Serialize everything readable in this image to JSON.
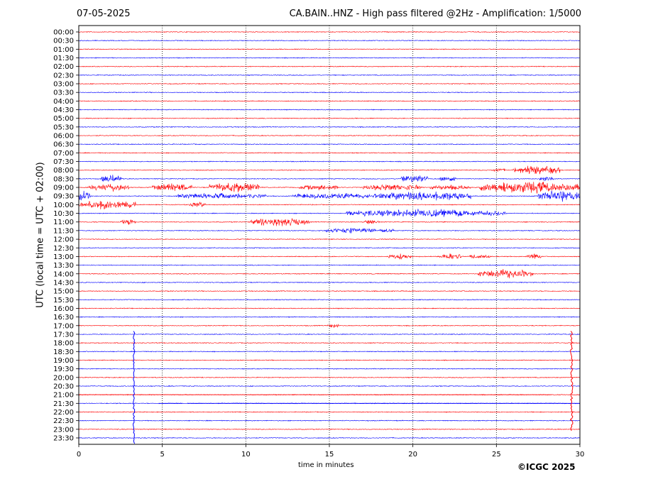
{
  "chart_data": {
    "type": "line",
    "title": "CA.BAIN..HNZ - High pass filtered @2Hz - Amplification: 1/5000",
    "date": "07-05-2025",
    "xlabel": "time in minutes",
    "ylabel": "UTC (local time = UTC + 02:00)",
    "copyright": "©ICGC 2025",
    "xlim": [
      0,
      30
    ],
    "xticks": [
      0,
      5,
      10,
      15,
      20,
      25,
      30
    ],
    "row_labels": [
      "00:00",
      "00:30",
      "01:00",
      "01:30",
      "02:00",
      "02:30",
      "03:00",
      "03:30",
      "04:00",
      "04:30",
      "05:00",
      "05:30",
      "06:00",
      "06:30",
      "07:00",
      "07:30",
      "08:00",
      "08:30",
      "09:00",
      "09:30",
      "10:00",
      "10:30",
      "11:00",
      "11:30",
      "12:00",
      "12:30",
      "13:00",
      "13:30",
      "14:00",
      "14:30",
      "15:00",
      "15:30",
      "16:00",
      "16:30",
      "17:00",
      "17:30",
      "18:00",
      "18:30",
      "19:00",
      "19:30",
      "20:00",
      "20:30",
      "21:00",
      "21:30",
      "22:00",
      "22:30",
      "23:00",
      "23:30"
    ],
    "trace_colors": [
      "#ff0000",
      "#0000ff"
    ],
    "grid_vertical_dotted": true,
    "activity_bursts": [
      {
        "row": "08:00",
        "start": 24.8,
        "end": 25.5,
        "amp": 0.3
      },
      {
        "row": "08:00",
        "start": 26.0,
        "end": 28.8,
        "amp": 0.7
      },
      {
        "row": "08:30",
        "start": 1.3,
        "end": 2.6,
        "amp": 0.6
      },
      {
        "row": "08:30",
        "start": 19.3,
        "end": 20.9,
        "amp": 0.7
      },
      {
        "row": "08:30",
        "start": 21.6,
        "end": 22.6,
        "amp": 0.4
      },
      {
        "row": "08:30",
        "start": 27.6,
        "end": 28.4,
        "amp": 0.4
      },
      {
        "row": "09:00",
        "start": 0.6,
        "end": 3.0,
        "amp": 0.6
      },
      {
        "row": "09:00",
        "start": 4.4,
        "end": 6.8,
        "amp": 0.6
      },
      {
        "row": "09:00",
        "start": 7.8,
        "end": 10.8,
        "amp": 0.8
      },
      {
        "row": "09:00",
        "start": 13.2,
        "end": 15.5,
        "amp": 0.4
      },
      {
        "row": "09:00",
        "start": 17.0,
        "end": 20.5,
        "amp": 0.5
      },
      {
        "row": "09:00",
        "start": 21.0,
        "end": 23.5,
        "amp": 0.4
      },
      {
        "row": "09:00",
        "start": 24.0,
        "end": 30.0,
        "amp": 0.9
      },
      {
        "row": "09:30",
        "start": 0.0,
        "end": 0.7,
        "amp": 0.8
      },
      {
        "row": "09:30",
        "start": 5.9,
        "end": 11.2,
        "amp": 0.4
      },
      {
        "row": "09:30",
        "start": 12.8,
        "end": 17.4,
        "amp": 0.5
      },
      {
        "row": "09:30",
        "start": 17.6,
        "end": 23.5,
        "amp": 0.7
      },
      {
        "row": "09:30",
        "start": 27.5,
        "end": 30.0,
        "amp": 0.9
      },
      {
        "row": "10:00",
        "start": 0.0,
        "end": 3.4,
        "amp": 0.7
      },
      {
        "row": "10:00",
        "start": 6.6,
        "end": 7.6,
        "amp": 0.4
      },
      {
        "row": "10:30",
        "start": 16.0,
        "end": 25.2,
        "amp": 0.6
      },
      {
        "row": "10:30",
        "start": 25.2,
        "end": 25.6,
        "amp": 0.3
      },
      {
        "row": "11:00",
        "start": 2.5,
        "end": 3.4,
        "amp": 0.5
      },
      {
        "row": "11:00",
        "start": 10.3,
        "end": 13.8,
        "amp": 0.7
      },
      {
        "row": "11:00",
        "start": 17.0,
        "end": 18.0,
        "amp": 0.3
      },
      {
        "row": "11:30",
        "start": 14.8,
        "end": 17.8,
        "amp": 0.4
      },
      {
        "row": "11:30",
        "start": 18.0,
        "end": 18.9,
        "amp": 0.3
      },
      {
        "row": "13:00",
        "start": 18.5,
        "end": 19.9,
        "amp": 0.4
      },
      {
        "row": "13:00",
        "start": 21.6,
        "end": 22.9,
        "amp": 0.5
      },
      {
        "row": "13:00",
        "start": 23.3,
        "end": 24.7,
        "amp": 0.3
      },
      {
        "row": "13:00",
        "start": 26.8,
        "end": 27.7,
        "amp": 0.4
      },
      {
        "row": "14:00",
        "start": 23.9,
        "end": 27.2,
        "amp": 0.7
      },
      {
        "row": "17:00",
        "start": 14.9,
        "end": 15.6,
        "amp": 0.3
      }
    ],
    "large_events": [
      {
        "row": "17:30",
        "x": 3.3,
        "color": "#0000ff",
        "extends_to_row": "23:30"
      },
      {
        "row": "17:30",
        "x": 29.5,
        "color": "#ff0000",
        "extends_to_row": "23:00"
      }
    ],
    "flat_segments": [
      {
        "row": "21:30",
        "start": 4.8,
        "end": 6.2
      },
      {
        "row": "21:30",
        "start": 6.5,
        "end": 30.0
      },
      {
        "row": "21:00",
        "start": 0.0,
        "end": 28.3
      }
    ]
  }
}
